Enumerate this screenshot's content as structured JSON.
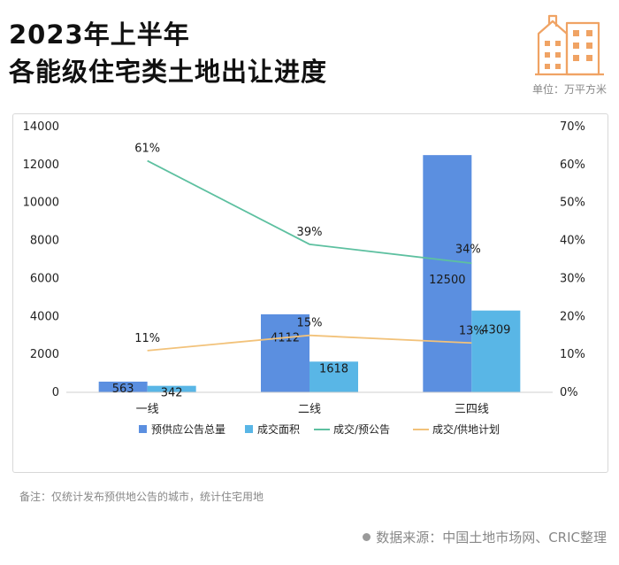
{
  "header": {
    "title_line1": "2023年上半年",
    "title_line2": "各能级住宅类土地出让进度",
    "unit": "单位：万平方米"
  },
  "footer": {
    "note": "备注：仅统计发布预供地公告的城市，统计住宅用地",
    "source": "数据来源：中国土地市场网、CRIC整理"
  },
  "colors": {
    "bar_supply": "#5b8fe0",
    "bar_deal": "#59b6e6",
    "line_deal_ratio": "#5dc0a0",
    "line_plan_ratio": "#f2c27a"
  },
  "chart_data": {
    "type": "bar",
    "categories": [
      "一线",
      "二线",
      "三四线"
    ],
    "series": [
      {
        "name": "预供应公告总量",
        "type": "bar",
        "axis": "left",
        "values": [
          563,
          4112,
          12500
        ],
        "labels": [
          "563",
          "4112",
          "12500"
        ]
      },
      {
        "name": "成交面积",
        "type": "bar",
        "axis": "left",
        "values": [
          342,
          1618,
          4309
        ],
        "labels": [
          "342",
          "1618",
          "4309"
        ]
      },
      {
        "name": "成交/预公告",
        "type": "line",
        "axis": "right",
        "values": [
          61,
          39,
          34
        ],
        "labels": [
          "61%",
          "39%",
          "34%"
        ]
      },
      {
        "name": "成交/供地计划",
        "type": "line",
        "axis": "right",
        "values": [
          11,
          15,
          13
        ],
        "labels": [
          "11%",
          "15%",
          "13%"
        ]
      }
    ],
    "y_left": {
      "min": 0,
      "max": 14000,
      "ticks": [
        "0",
        "2000",
        "4000",
        "6000",
        "8000",
        "10000",
        "12000",
        "14000"
      ]
    },
    "y_right": {
      "min": 0,
      "max": 70,
      "ticks": [
        "0%",
        "10%",
        "20%",
        "30%",
        "40%",
        "50%",
        "60%",
        "70%"
      ]
    },
    "legend_position": "bottom",
    "grid": false
  }
}
